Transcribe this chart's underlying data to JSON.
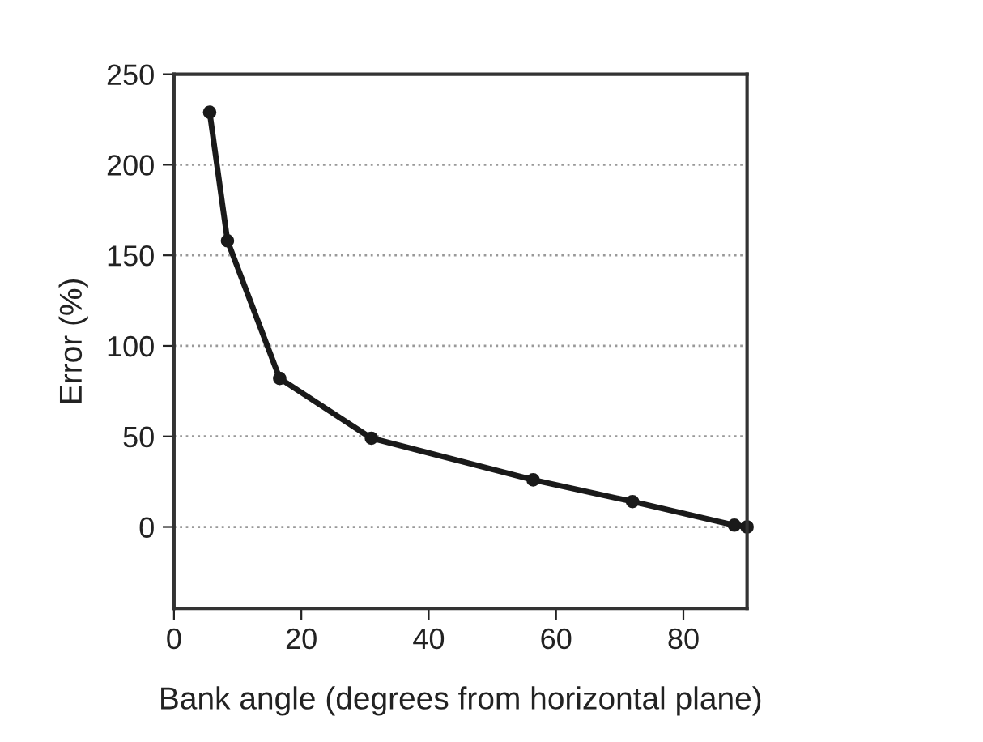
{
  "chart_data": {
    "type": "line",
    "xlabel": "Bank angle (degrees from horizontal plane)",
    "ylabel": "Error (%)",
    "x": [
      5.6,
      8.4,
      16.6,
      31,
      56.4,
      72,
      88,
      90
    ],
    "series": [
      {
        "color": "#1a1a1a",
        "values": [
          229,
          158,
          82,
          49,
          26,
          14,
          1,
          0
        ]
      }
    ],
    "xlim": [
      0,
      90
    ],
    "xticks": [
      0,
      20,
      40,
      60,
      80
    ],
    "ylim": [
      -45,
      250
    ],
    "yticks": [
      0,
      50,
      100,
      150,
      200,
      250
    ],
    "grid": "y",
    "marker": "circle",
    "line_style": "solid",
    "legend": false
  }
}
